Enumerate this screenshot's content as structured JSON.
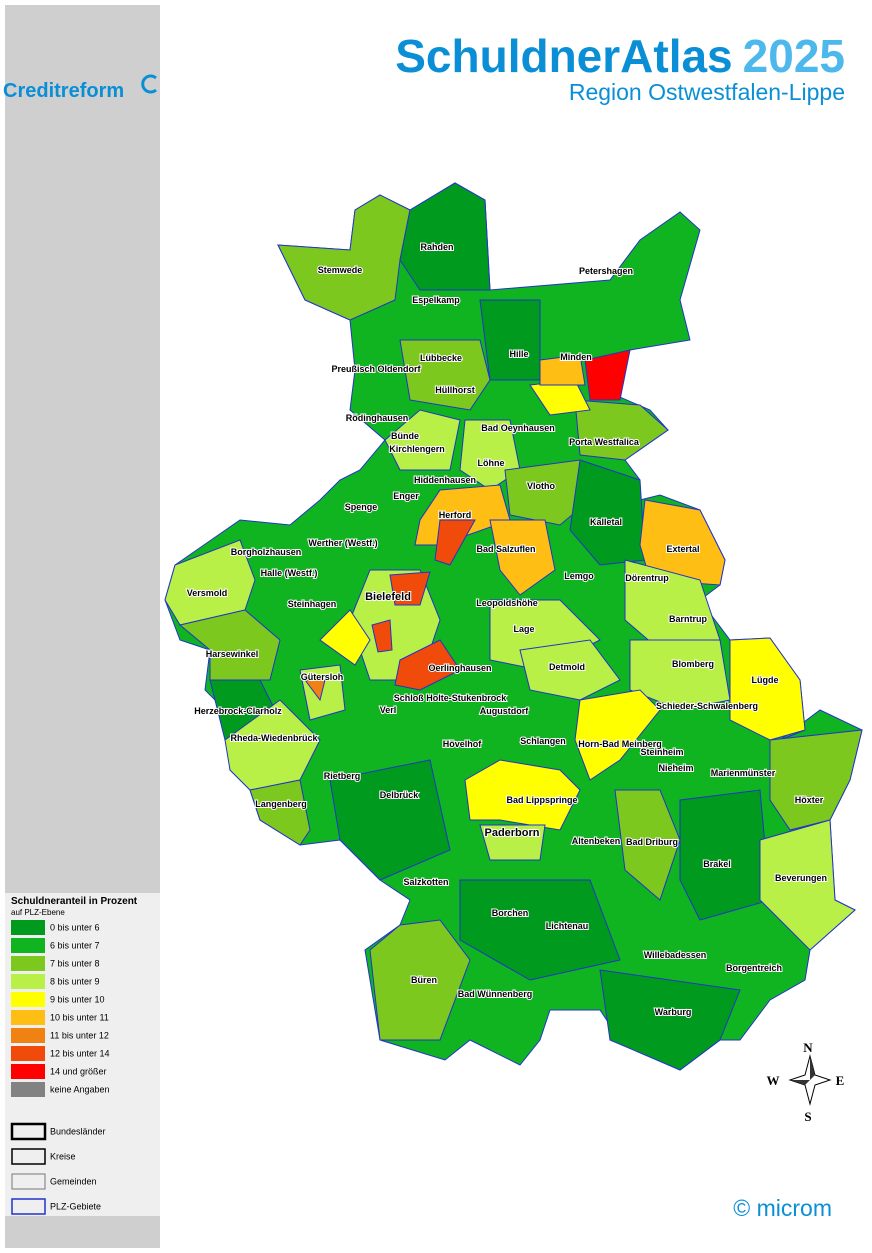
{
  "header": {
    "title": "SchuldnerAtlas",
    "year": "2025",
    "subtitle": "Region Ostwestfalen-Lippe"
  },
  "logo": "Creditreform",
  "legend": {
    "title": "Schuldneranteil in Prozent",
    "subtitle": "auf PLZ-Ebene",
    "classes": [
      {
        "label": "0 bis unter 6",
        "color": "#009a1e"
      },
      {
        "label": "6 bis unter 7",
        "color": "#10b420"
      },
      {
        "label": "7 bis unter 8",
        "color": "#7cc81e"
      },
      {
        "label": "8 bis unter 9",
        "color": "#b8f048"
      },
      {
        "label": "9 bis unter 10",
        "color": "#ffff00"
      },
      {
        "label": "10 bis unter 11",
        "color": "#ffbe14"
      },
      {
        "label": "11 bis unter 12",
        "color": "#f08214"
      },
      {
        "label": "12 bis unter 14",
        "color": "#f04b0a"
      },
      {
        "label": "14 und größer",
        "color": "#ff0000"
      },
      {
        "label": "keine Angaben",
        "color": "#828282"
      }
    ],
    "boundaries": [
      "Bundesländer",
      "Kreise",
      "Gemeinden",
      "PLZ-Gebiete"
    ]
  },
  "places": [
    "Rahden",
    "Stemwede",
    "Petershagen",
    "Espelkamp",
    "Hille",
    "Minden",
    "Lübbecke",
    "Preußisch Oldendorf",
    "Hüllhorst",
    "Rödinghausen",
    "Bad Oeynhausen",
    "Porta Westfalica",
    "Bünde",
    "Kirchlengern",
    "Löhne",
    "Hiddenhausen",
    "Vlotho",
    "Enger",
    "Spenge",
    "Herford",
    "Kalletal",
    "Borgholzhausen",
    "Werther (Westf.)",
    "Bad Salzuflen",
    "Extertal",
    "Halle (Westf.)",
    "Versmold",
    "Lemgo",
    "Dörentrup",
    "Bielefeld",
    "Steinhagen",
    "Leopoldshöhe",
    "Barntrup",
    "Lage",
    "Harsewinkel",
    "Blomberg",
    "Detmold",
    "Oerlinghausen",
    "Gütersloh",
    "Lügde",
    "Schloß Holte-Stukenbrock",
    "Herzebrock-Clarholz",
    "Verl",
    "Augustdorf",
    "Schieder-Schwalenberg",
    "Rheda-Wiedenbrück",
    "Schlangen",
    "Horn-Bad Meinberg",
    "Hövelhof",
    "Steinheim",
    "Nieheim",
    "Marienmünster",
    "Rietberg",
    "Delbrück",
    "Langenberg",
    "Bad Lippspringe",
    "Höxter",
    "Paderborn",
    "Altenbeken",
    "Bad Driburg",
    "Brakel",
    "Beverungen",
    "Salzkotten",
    "Borchen",
    "Lichtenau",
    "Willebadessen",
    "Borgentreich",
    "Büren",
    "Bad Wünnenberg",
    "Warburg"
  ],
  "compass": {
    "n": "N",
    "e": "E",
    "s": "S",
    "w": "W"
  },
  "copyright": "© microm"
}
